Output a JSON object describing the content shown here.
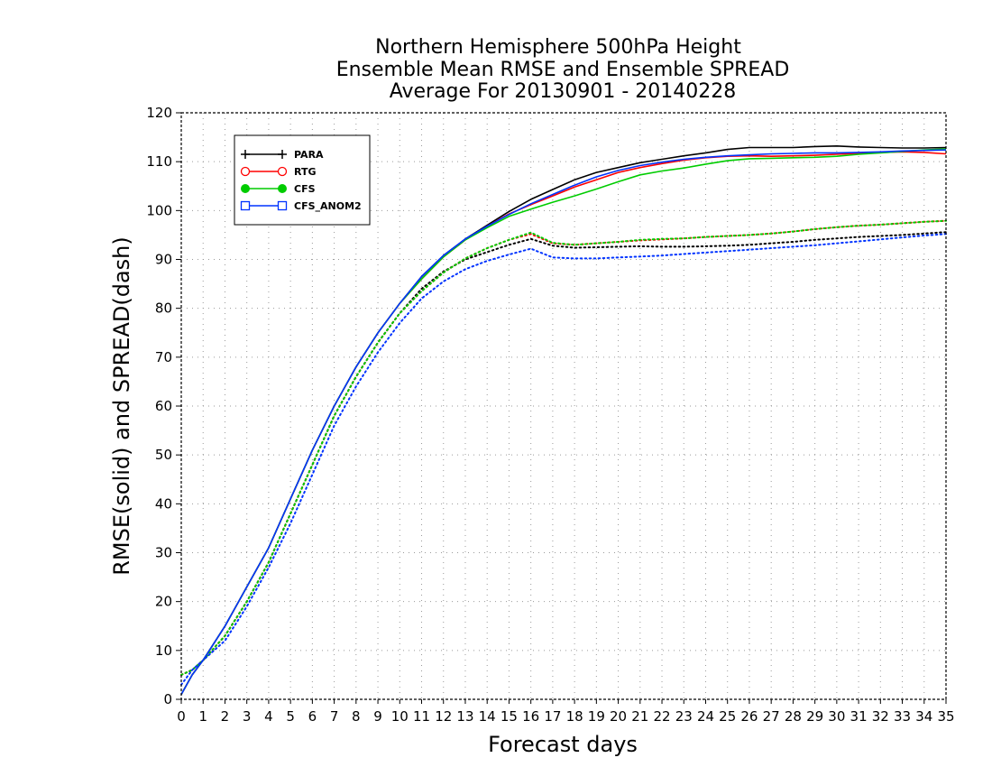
{
  "chart_data": {
    "type": "line",
    "title_lines": [
      "Northern Hemisphere 500hPa Height",
      "Ensemble Mean RMSE and Ensemble SPREAD",
      "Average For 20130901 - 20140228"
    ],
    "xlabel": "Forecast days",
    "ylabel": "RMSE(solid) and SPREAD(dash)",
    "xlim": [
      0,
      35
    ],
    "ylim": [
      0,
      120
    ],
    "x_ticks": [
      0,
      1,
      2,
      3,
      4,
      5,
      6,
      7,
      8,
      9,
      10,
      11,
      12,
      13,
      14,
      15,
      16,
      17,
      18,
      19,
      20,
      21,
      22,
      23,
      24,
      25,
      26,
      27,
      28,
      29,
      30,
      31,
      32,
      33,
      34,
      35
    ],
    "y_ticks": [
      0,
      10,
      20,
      30,
      40,
      50,
      60,
      70,
      80,
      90,
      100,
      110,
      120
    ],
    "grid": true,
    "legend_position": "top-left",
    "x": [
      0,
      0.5,
      1,
      2,
      3,
      4,
      5,
      6,
      7,
      8,
      9,
      10,
      11,
      12,
      13,
      14,
      15,
      16,
      17,
      18,
      19,
      20,
      21,
      22,
      23,
      24,
      25,
      26,
      27,
      28,
      29,
      30,
      31,
      32,
      33,
      34,
      35
    ],
    "series": [
      {
        "name": "PARA",
        "color": "#000000",
        "marker": "plus",
        "rmse": [
          1,
          5,
          8,
          15,
          23,
          31,
          41,
          51,
          60,
          68,
          75,
          81,
          86.5,
          90.8,
          94.2,
          97,
          99.8,
          102.3,
          104.3,
          106.3,
          107.8,
          108.8,
          109.8,
          110.5,
          111.2,
          111.8,
          112.5,
          112.9,
          112.9,
          112.9,
          113.1,
          113.2,
          113,
          112.9,
          112.8,
          112.8,
          112.9
        ],
        "spread": [
          5,
          6,
          8,
          13,
          20,
          28,
          38,
          48,
          58,
          66,
          73,
          79,
          84,
          87.5,
          90,
          91.5,
          93,
          94.2,
          92.8,
          92.4,
          92.5,
          92.6,
          92.7,
          92.6,
          92.6,
          92.7,
          92.8,
          93,
          93.3,
          93.6,
          94,
          94.3,
          94.6,
          94.8,
          95,
          95.3,
          95.6
        ]
      },
      {
        "name": "RTG",
        "color": "#ff0000",
        "marker": "open-circle",
        "rmse": [
          1,
          5,
          8,
          15,
          23,
          31,
          41,
          51,
          60,
          68,
          75,
          81,
          86,
          90.5,
          94,
          96.8,
          99.3,
          101.2,
          103,
          104.8,
          106.3,
          107.8,
          108.8,
          109.6,
          110.3,
          110.8,
          111.1,
          111.2,
          111.1,
          111.2,
          111.3,
          111.5,
          111.7,
          111.9,
          112,
          111.9,
          111.6
        ],
        "spread": [
          5,
          6,
          8,
          13,
          20,
          28,
          38,
          48,
          58,
          66,
          73,
          79,
          83.5,
          87.3,
          90.2,
          92.3,
          94,
          95.2,
          93.3,
          93,
          93.3,
          93.6,
          93.9,
          94.1,
          94.3,
          94.6,
          94.8,
          95,
          95.3,
          95.7,
          96.2,
          96.6,
          96.9,
          97.1,
          97.4,
          97.7,
          97.9
        ]
      },
      {
        "name": "CFS",
        "color": "#00cc00",
        "marker": "filled-circle",
        "rmse": [
          1,
          5,
          8,
          15,
          23,
          31,
          41,
          51,
          60,
          68,
          75,
          81,
          86,
          90.5,
          94,
          96.5,
          98.8,
          100.3,
          101.7,
          103,
          104.4,
          105.9,
          107.3,
          108.1,
          108.7,
          109.5,
          110.2,
          110.6,
          110.7,
          110.8,
          110.9,
          111.1,
          111.5,
          111.8,
          112.1,
          112.4,
          112.6
        ],
        "spread": [
          5,
          6,
          8,
          13,
          20,
          28,
          38,
          48,
          58,
          66,
          73,
          79,
          83.5,
          87.3,
          90.2,
          92.3,
          94,
          95.5,
          93.4,
          93,
          93.3,
          93.6,
          94,
          94.2,
          94.3,
          94.6,
          94.8,
          95,
          95.3,
          95.7,
          96.2,
          96.6,
          96.9,
          97.1,
          97.4,
          97.7,
          97.9
        ]
      },
      {
        "name": "CFS_ANOM2",
        "color": "#0033ff",
        "marker": "open-square",
        "rmse": [
          1,
          5,
          8,
          15,
          23,
          31,
          41,
          51,
          60,
          68,
          75,
          81,
          86.5,
          90.8,
          94.2,
          96.8,
          99.2,
          101.4,
          103.3,
          105.2,
          106.9,
          108.2,
          109.2,
          109.9,
          110.5,
          110.9,
          111.2,
          111.4,
          111.6,
          111.7,
          111.8,
          111.8,
          111.9,
          112,
          112.2,
          112.3,
          112.4
        ],
        "spread": [
          3,
          6,
          8,
          12,
          19,
          27,
          36,
          46,
          56,
          64,
          71,
          77,
          82,
          85.5,
          88,
          89.7,
          91,
          92.2,
          90.4,
          90.2,
          90.2,
          90.4,
          90.6,
          90.8,
          91.1,
          91.4,
          91.7,
          92,
          92.3,
          92.6,
          92.9,
          93.3,
          93.7,
          94.1,
          94.5,
          94.9,
          95.2
        ]
      }
    ]
  }
}
